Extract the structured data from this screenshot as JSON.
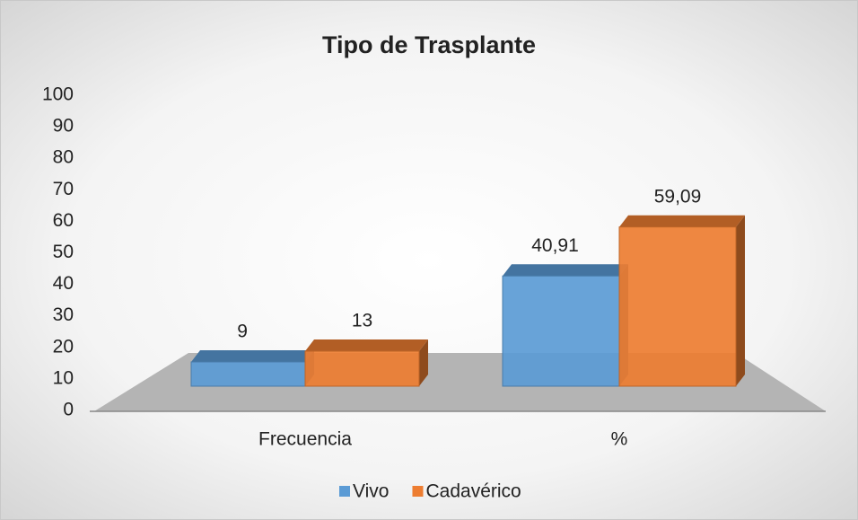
{
  "chart_data": {
    "type": "bar3d",
    "title": "Tipo de Trasplante",
    "categories": [
      "Frecuencia",
      "%"
    ],
    "series": [
      {
        "name": "Vivo",
        "color": "#5b9bd5",
        "values": [
          9,
          40.91
        ],
        "value_labels": [
          "9",
          "40,91"
        ]
      },
      {
        "name": "Cadavérico",
        "color": "#ed7d31",
        "values": [
          13,
          59.09
        ],
        "value_labels": [
          "13",
          "59,09"
        ]
      }
    ],
    "ylim": [
      0,
      100
    ],
    "yticks": [
      0,
      10,
      20,
      30,
      40,
      50,
      60,
      70,
      80,
      90,
      100
    ],
    "legend": "bottom"
  }
}
